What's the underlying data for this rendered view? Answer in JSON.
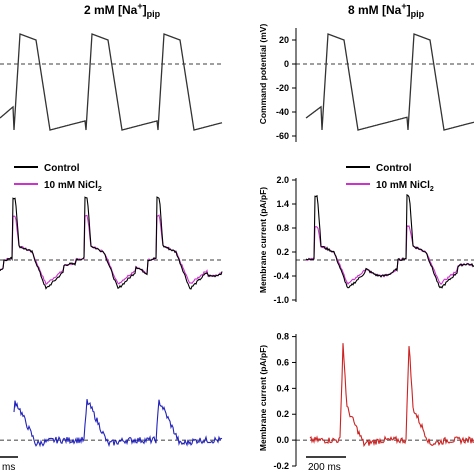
{
  "titles": {
    "left": {
      "main": "2 mM [Na",
      "sup": "+",
      "close": "]",
      "sub": "pip"
    },
    "right": {
      "main": "8 mM [Na",
      "sup": "+",
      "close": "]",
      "sub": "pip"
    }
  },
  "legend": {
    "control": "Control",
    "nicl2_main": "10 mM NiCl",
    "nicl2_sub": "2"
  },
  "scalebars": {
    "left": "ms",
    "right": "200 ms"
  },
  "colors": {
    "control": "#000000",
    "nicl2": "#cc33cc",
    "difference_left": "#2222bb",
    "difference_right": "#cc2222",
    "command": "#333333",
    "zero_line": "#000000"
  },
  "chart_data": [
    {
      "id": "command",
      "type": "line",
      "ylabel": "Command potential (mV)",
      "ylim": [
        -65,
        30
      ],
      "yticks": [
        "20",
        "0",
        "-20",
        "-40",
        "-60"
      ],
      "ytick_values": [
        20,
        0,
        -20,
        -40,
        -60
      ],
      "zero_line": 0,
      "waveform": {
        "description_values_mV": {
          "rest": -55,
          "peak": 25,
          "plateau_end": -10
        },
        "beats_left_ms": [
          70,
          340,
          610
        ],
        "beats_right_ms": [
          140,
          410
        ]
      }
    },
    {
      "id": "membrane_current",
      "type": "line",
      "ylabel": "Membrane current (pA/pF)",
      "ylim": [
        -1.05,
        2.05
      ],
      "yticks": [
        "2.0",
        "1.4",
        "0.8",
        "0.2",
        "-0.4",
        "-1.0"
      ],
      "ytick_values": [
        2.0,
        1.4,
        0.8,
        0.2,
        -0.4,
        -1.0
      ],
      "zero_line": 0,
      "series": [
        {
          "name": "Control",
          "color_key": "control",
          "left_peak": 1.55,
          "right_peak": 1.6,
          "trough": -0.72
        },
        {
          "name": "10 mM NiCl2",
          "color_key": "nicl2",
          "left_peak": 1.1,
          "right_peak": 0.85,
          "trough": -0.6
        }
      ]
    },
    {
      "id": "difference_current",
      "type": "line",
      "ylabel": "Membrane current (pA/pF)",
      "ylim": [
        -0.2,
        0.82
      ],
      "yticks": [
        "0.8",
        "0.6",
        "0.4",
        "0.2",
        "0.0",
        "-0.2"
      ],
      "ytick_values": [
        0.8,
        0.6,
        0.4,
        0.2,
        0.0,
        -0.2
      ],
      "zero_line": 0,
      "series": [
        {
          "name": "left",
          "color_key": "difference_left",
          "peak": 0.3
        },
        {
          "name": "right",
          "color_key": "difference_right",
          "peak": 0.75
        }
      ]
    }
  ]
}
